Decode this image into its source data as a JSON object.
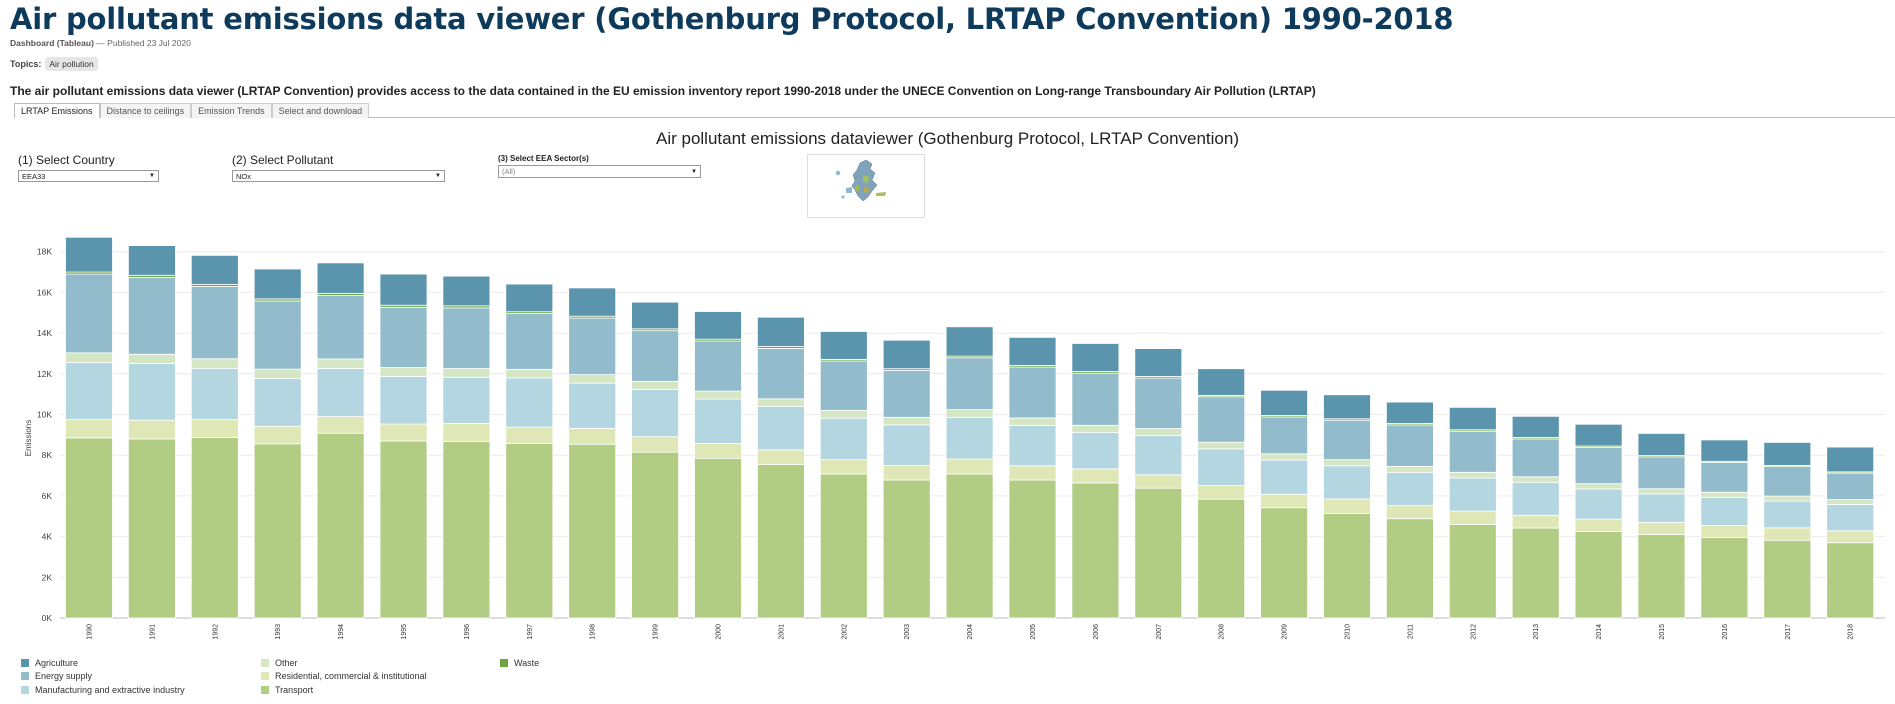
{
  "header": {
    "title": "Air pollutant emissions data viewer (Gothenburg Protocol, LRTAP Convention) 1990-2018",
    "type": "Dashboard (Tableau)",
    "separator": "—",
    "published": "Published 23 Jul 2020",
    "topics_label": "Topics:",
    "topic": "Air pollution",
    "intro": "The air pollutant emissions data viewer (LRTAP Convention) provides access to the data contained in the EU emission inventory report 1990-2018 under the UNECE Convention on Long-range Transboundary Air Pollution (LRTAP)"
  },
  "tabs": [
    "LRTAP Emissions",
    "Distance to ceilings",
    "Emission Trends",
    "Select and download"
  ],
  "viz_title": "Air pollutant emissions dataviewer (Gothenburg Protocol, LRTAP Convention)",
  "filters": {
    "country": {
      "label": "(1) Select Country",
      "value": "EEA33"
    },
    "pollutant": {
      "label": "(2) Select Pollutant",
      "value": "NOx"
    },
    "sector": {
      "label": "(3) Select EEA Sector(s)",
      "value": "(All)"
    }
  },
  "colors": {
    "Agriculture": "#5b95ad",
    "Energy supply": "#92bccb",
    "Manufacturing and extractive industry": "#b4d6e1",
    "Other": "#d4e6c4",
    "Residential, commercial & institutional": "#dfe7b6",
    "Transport": "#b1cd84",
    "Waste": "#6ca43d"
  },
  "legend": {
    "col1": [
      "Agriculture",
      "Energy supply",
      "Manufacturing and extractive industry"
    ],
    "col2": [
      "Other",
      "Residential, commercial & institutional",
      "Transport"
    ],
    "col3": [
      "Waste"
    ]
  },
  "chart_data": {
    "type": "bar",
    "stacked": true,
    "ylabel": "Emissions",
    "ylim": [
      0,
      19000
    ],
    "yticks": [
      0,
      2000,
      4000,
      6000,
      8000,
      10000,
      12000,
      14000,
      16000,
      18000
    ],
    "ytick_labels": [
      "0K",
      "2K",
      "4K",
      "6K",
      "8K",
      "10K",
      "12K",
      "14K",
      "16K",
      "18K"
    ],
    "categories": [
      "1990",
      "1991",
      "1992",
      "1993",
      "1994",
      "1995",
      "1996",
      "1997",
      "1998",
      "1999",
      "2000",
      "2001",
      "2002",
      "2003",
      "2004",
      "2005",
      "2006",
      "2007",
      "2008",
      "2009",
      "2010",
      "2011",
      "2012",
      "2013",
      "2014",
      "2015",
      "2016",
      "2017",
      "2018"
    ],
    "series": [
      {
        "name": "Transport",
        "values": [
          8850,
          8800,
          8870,
          8560,
          9080,
          8700,
          8680,
          8580,
          8540,
          8150,
          7850,
          7540,
          7080,
          6780,
          7080,
          6780,
          6640,
          6380,
          5840,
          5420,
          5130,
          4880,
          4600,
          4420,
          4250,
          4100,
          3950,
          3820,
          3700
        ]
      },
      {
        "name": "Residential, commercial & institutional",
        "values": [
          900,
          920,
          880,
          860,
          820,
          830,
          880,
          800,
          780,
          760,
          730,
          720,
          700,
          710,
          730,
          700,
          690,
          660,
          670,
          660,
          720,
          640,
          650,
          630,
          610,
          600,
          600,
          610,
          580
        ]
      },
      {
        "name": "Manufacturing and extractive industry",
        "values": [
          2800,
          2780,
          2520,
          2350,
          2360,
          2340,
          2270,
          2420,
          2220,
          2320,
          2180,
          2130,
          2040,
          2000,
          2050,
          1980,
          1780,
          1920,
          1800,
          1680,
          1630,
          1640,
          1630,
          1620,
          1480,
          1400,
          1380,
          1320,
          1300
        ]
      },
      {
        "name": "Other",
        "values": [
          480,
          460,
          470,
          460,
          470,
          440,
          430,
          420,
          420,
          400,
          390,
          380,
          380,
          370,
          380,
          370,
          360,
          350,
          330,
          310,
          300,
          290,
          280,
          270,
          260,
          250,
          250,
          240,
          240
        ]
      },
      {
        "name": "Energy supply",
        "values": [
          3870,
          3780,
          3550,
          3350,
          3120,
          2960,
          2980,
          2740,
          2780,
          2490,
          2460,
          2480,
          2430,
          2310,
          2550,
          2500,
          2560,
          2480,
          2230,
          1810,
          1940,
          2040,
          2020,
          1860,
          1790,
          1570,
          1460,
          1450,
          1300
        ]
      },
      {
        "name": "Waste",
        "values": [
          100,
          100,
          100,
          100,
          100,
          100,
          100,
          90,
          90,
          90,
          90,
          90,
          80,
          80,
          80,
          80,
          80,
          80,
          70,
          70,
          70,
          70,
          70,
          70,
          60,
          60,
          60,
          60,
          60
        ]
      },
      {
        "name": "Agriculture",
        "values": [
          1710,
          1460,
          1430,
          1470,
          1500,
          1530,
          1460,
          1360,
          1390,
          1310,
          1360,
          1440,
          1370,
          1400,
          1440,
          1380,
          1380,
          1370,
          1310,
          1240,
          1180,
          1050,
          1100,
          1040,
          1070,
          1090,
          1050,
          1130,
          1220
        ]
      }
    ]
  }
}
